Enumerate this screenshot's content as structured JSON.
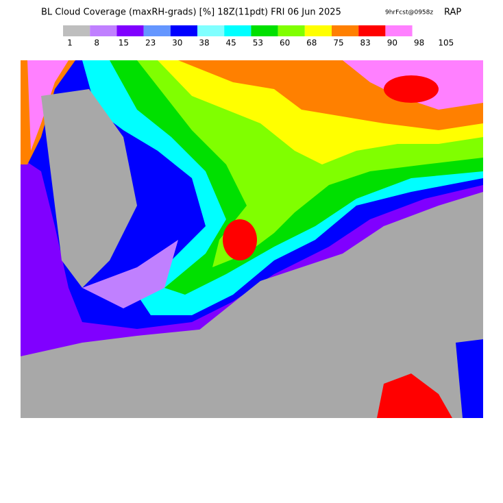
{
  "header": {
    "title": "BL Cloud Coverage (maxRH-grads) [%] 18Z(11pdt) FRI 06 Jun 2025",
    "forecast": "9hrFcst@0958z",
    "model": "RAP"
  },
  "colorbar": {
    "colors": [
      "#bebebe",
      "#c080ff",
      "#8000ff",
      "#6496ff",
      "#0000ff",
      "#80ffff",
      "#00ffff",
      "#00e000",
      "#80ff00",
      "#ffff00",
      "#ff8000",
      "#ff0000",
      "#ff80ff"
    ],
    "labels": [
      "1",
      "8",
      "15",
      "23",
      "30",
      "38",
      "45",
      "53",
      "60",
      "68",
      "75",
      "83",
      "90",
      "98",
      "105"
    ]
  }
}
